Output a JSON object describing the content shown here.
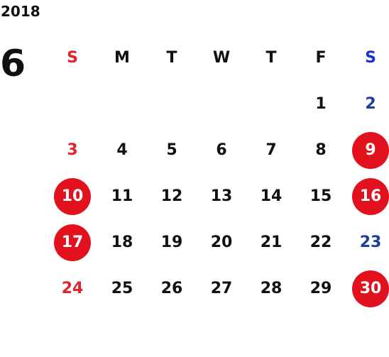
{
  "calendar": {
    "year": "2018",
    "month": "6",
    "weekdays": [
      "S",
      "M",
      "T",
      "W",
      "T",
      "F",
      "S"
    ],
    "weeks": [
      [
        "",
        "",
        "",
        "",
        "",
        "1",
        "2"
      ],
      [
        "3",
        "4",
        "5",
        "6",
        "7",
        "8",
        "9"
      ],
      [
        "10",
        "11",
        "12",
        "13",
        "14",
        "15",
        "16"
      ],
      [
        "17",
        "18",
        "19",
        "20",
        "21",
        "22",
        "23"
      ],
      [
        "24",
        "25",
        "26",
        "27",
        "28",
        "29",
        "30"
      ]
    ],
    "highlighted_days": [
      "9",
      "10",
      "16",
      "17",
      "30"
    ]
  },
  "colors": {
    "sunday": "#e0232e",
    "saturday": "#1d3f99",
    "highlight": "#e3101e",
    "text": "#111111"
  }
}
